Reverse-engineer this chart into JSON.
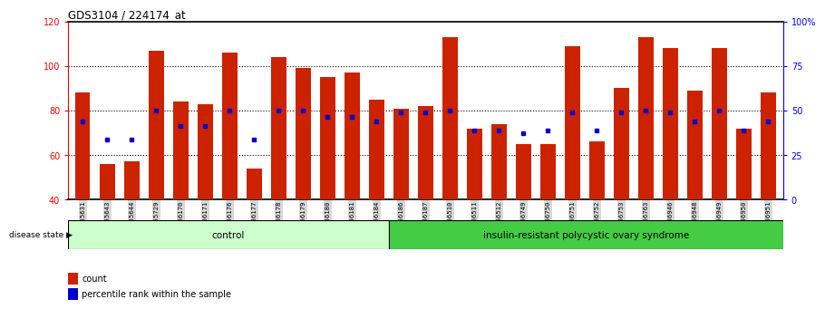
{
  "title": "GDS3104 / 224174_at",
  "samples": [
    "GSM155631",
    "GSM155643",
    "GSM155644",
    "GSM155729",
    "GSM156170",
    "GSM156171",
    "GSM156176",
    "GSM156177",
    "GSM156178",
    "GSM156179",
    "GSM156180",
    "GSM156181",
    "GSM156184",
    "GSM156186",
    "GSM156187",
    "GSM156510",
    "GSM156511",
    "GSM156512",
    "GSM156749",
    "GSM156750",
    "GSM156751",
    "GSM156752",
    "GSM156753",
    "GSM156763",
    "GSM156946",
    "GSM156948",
    "GSM156949",
    "GSM156950",
    "GSM156951"
  ],
  "bar_heights": [
    88,
    56,
    57,
    107,
    84,
    83,
    106,
    54,
    104,
    99,
    95,
    97,
    85,
    81,
    82,
    113,
    72,
    74,
    65,
    65,
    109,
    66,
    90,
    113,
    108,
    89,
    108,
    72,
    88
  ],
  "dot_values": [
    75,
    67,
    67,
    80,
    73,
    73,
    80,
    67,
    80,
    80,
    77,
    77,
    75,
    79,
    79,
    80,
    71,
    71,
    70,
    71,
    79,
    71,
    79,
    80,
    79,
    75,
    80,
    71,
    75
  ],
  "control_count": 13,
  "disease_count": 16,
  "bar_color": "#cc2200",
  "dot_color": "#0000cc",
  "ylim_left": [
    40,
    120
  ],
  "y_ticks_left": [
    40,
    60,
    80,
    100,
    120
  ],
  "y_ticks_right": [
    0,
    25,
    50,
    75,
    100
  ],
  "y_tick_right_labels": [
    "0",
    "25",
    "50",
    "75",
    "100%"
  ],
  "control_label": "control",
  "disease_label": "insulin-resistant polycystic ovary syndrome",
  "disease_state_label": "disease state",
  "legend_count_label": "count",
  "legend_pct_label": "percentile rank within the sample",
  "group_color_control": "#ccffcc",
  "group_color_disease": "#44cc44",
  "background_color": "#ffffff"
}
